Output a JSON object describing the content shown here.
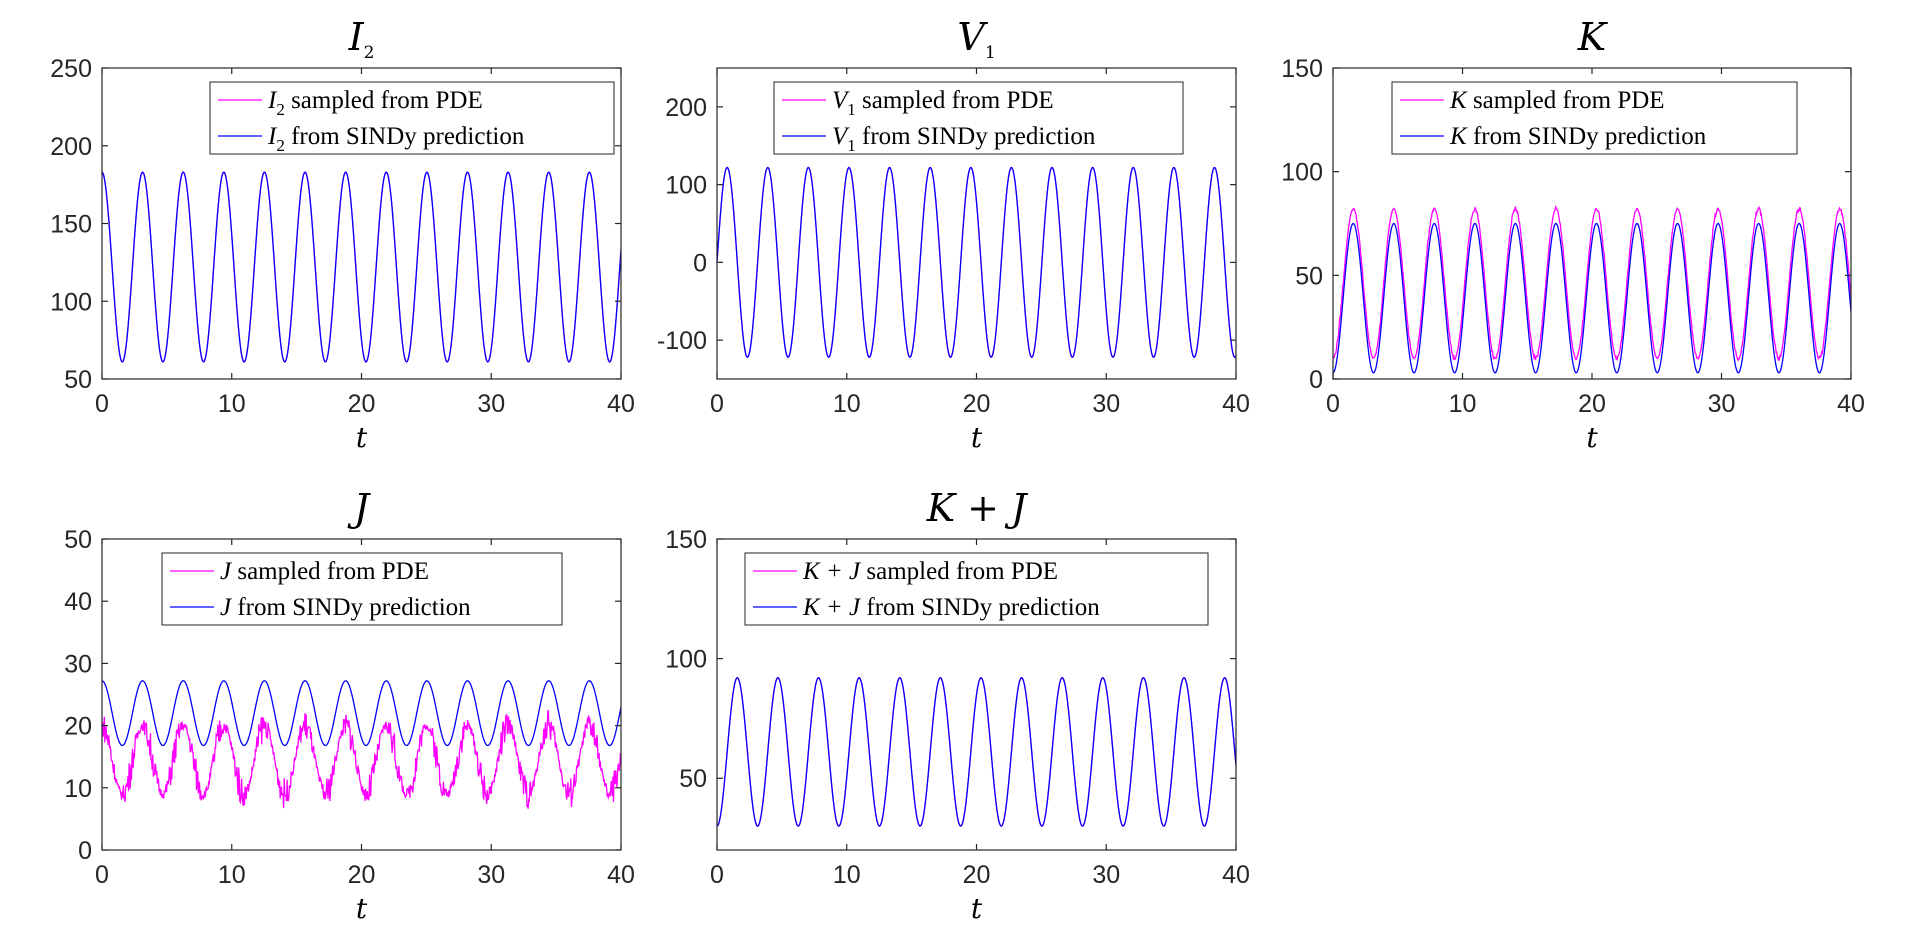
{
  "chart_data": [
    {
      "type": "line",
      "title": {
        "sym": "I",
        "sub": "2"
      },
      "xlabel": "t",
      "xlim": [
        0,
        40
      ],
      "ylim": [
        50,
        250
      ],
      "xticks": [
        "0",
        "10",
        "20",
        "30",
        "40"
      ],
      "yticks": [
        "50",
        "100",
        "150",
        "200",
        "250"
      ],
      "series": [
        {
          "name": "I2 sampled from PDE",
          "color": "#ff00ff",
          "legend": {
            "sym": "I",
            "sub": "2",
            "text": " sampled from PDE"
          },
          "model": {
            "mean": 122,
            "amp": 61,
            "period": 3.13,
            "phase": 0,
            "shape": "cos"
          }
        },
        {
          "name": "I2 from SINDy prediction",
          "color": "#0000ff",
          "legend": {
            "sym": "I",
            "sub": "2",
            "text": " from SINDy prediction"
          },
          "model": {
            "mean": 122,
            "amp": 61,
            "period": 3.13,
            "phase": 0,
            "shape": "cos"
          }
        }
      ]
    },
    {
      "type": "line",
      "title": {
        "sym": "V",
        "sub": "1"
      },
      "xlabel": "t",
      "xlim": [
        0,
        40
      ],
      "ylim": [
        -150,
        250
      ],
      "xticks": [
        "0",
        "10",
        "20",
        "30",
        "40"
      ],
      "yticks": [
        "-100",
        "0",
        "100",
        "200"
      ],
      "ytick_values": [
        -100,
        0,
        100,
        200
      ],
      "series": [
        {
          "name": "V1 sampled from PDE",
          "color": "#ff00ff",
          "legend": {
            "sym": "V",
            "sub": "1",
            "text": " sampled from PDE"
          },
          "model": {
            "mean": 0,
            "amp": 122,
            "period": 3.13,
            "phase": 0,
            "shape": "sin"
          }
        },
        {
          "name": "V1 from SINDy prediction",
          "color": "#0000ff",
          "legend": {
            "sym": "V",
            "sub": "1",
            "text": " from SINDy prediction"
          },
          "model": {
            "mean": 0,
            "amp": 122,
            "period": 3.13,
            "phase": 0,
            "shape": "sin"
          }
        }
      ]
    },
    {
      "type": "line",
      "title": {
        "sym": "K",
        "sub": ""
      },
      "xlabel": "t",
      "xlim": [
        0,
        40
      ],
      "ylim": [
        0,
        150
      ],
      "xticks": [
        "0",
        "10",
        "20",
        "30",
        "40"
      ],
      "yticks": [
        "0",
        "50",
        "100",
        "150"
      ],
      "series": [
        {
          "name": "K sampled from PDE",
          "color": "#ff00ff",
          "legend": {
            "sym": "K",
            "sub": "",
            "text": " sampled from PDE"
          },
          "model": {
            "mean": 46,
            "amp": 36,
            "period": 3.13,
            "phase": 0,
            "shape": "negcos",
            "noise": 1.5
          }
        },
        {
          "name": "K from SINDy prediction",
          "color": "#0000ff",
          "legend": {
            "sym": "K",
            "sub": "",
            "text": " from SINDy prediction"
          },
          "model": {
            "mean": 39,
            "amp": 36,
            "period": 3.13,
            "phase": 0,
            "shape": "negcos"
          }
        }
      ]
    },
    {
      "type": "line",
      "title": {
        "sym": "J",
        "sub": ""
      },
      "xlabel": "t",
      "xlim": [
        0,
        40
      ],
      "ylim": [
        0,
        50
      ],
      "xticks": [
        "0",
        "10",
        "20",
        "30",
        "40"
      ],
      "yticks": [
        "0",
        "10",
        "20",
        "30",
        "40",
        "50"
      ],
      "series": [
        {
          "name": "J sampled from PDE",
          "color": "#ff00ff",
          "legend": {
            "sym": "J",
            "sub": "",
            "text": " sampled from PDE"
          },
          "model": {
            "mean": 14.5,
            "amp": 5.5,
            "period": 3.13,
            "phase": 0,
            "shape": "cos",
            "noise": 3.2
          }
        },
        {
          "name": "J from SINDy prediction",
          "color": "#0000ff",
          "legend": {
            "sym": "J",
            "sub": "",
            "text": " from SINDy prediction"
          },
          "model": {
            "mean": 22,
            "amp": 5.2,
            "period": 3.13,
            "phase": 0,
            "shape": "cos"
          }
        }
      ]
    },
    {
      "type": "line",
      "title": {
        "sym": "K + J",
        "sub": ""
      },
      "xlabel": "t",
      "xlim": [
        0,
        40
      ],
      "ylim": [
        20,
        150
      ],
      "xticks": [
        "0",
        "10",
        "20",
        "30",
        "40"
      ],
      "yticks": [
        "50",
        "100",
        "150"
      ],
      "ytick_values": [
        50,
        100,
        150
      ],
      "series": [
        {
          "name": "K + J sampled from PDE",
          "color": "#ff00ff",
          "legend": {
            "sym": "K + J",
            "sub": "",
            "text": " sampled from PDE"
          },
          "model": {
            "mean": 61,
            "amp": 31,
            "period": 3.13,
            "phase": 0,
            "shape": "negcos"
          }
        },
        {
          "name": "K + J from SINDy prediction",
          "color": "#0000ff",
          "legend": {
            "sym": "K + J",
            "sub": "",
            "text": " from SINDy prediction"
          },
          "model": {
            "mean": 61,
            "amp": 31,
            "period": 3.13,
            "phase": 0,
            "shape": "negcos"
          }
        }
      ]
    }
  ]
}
